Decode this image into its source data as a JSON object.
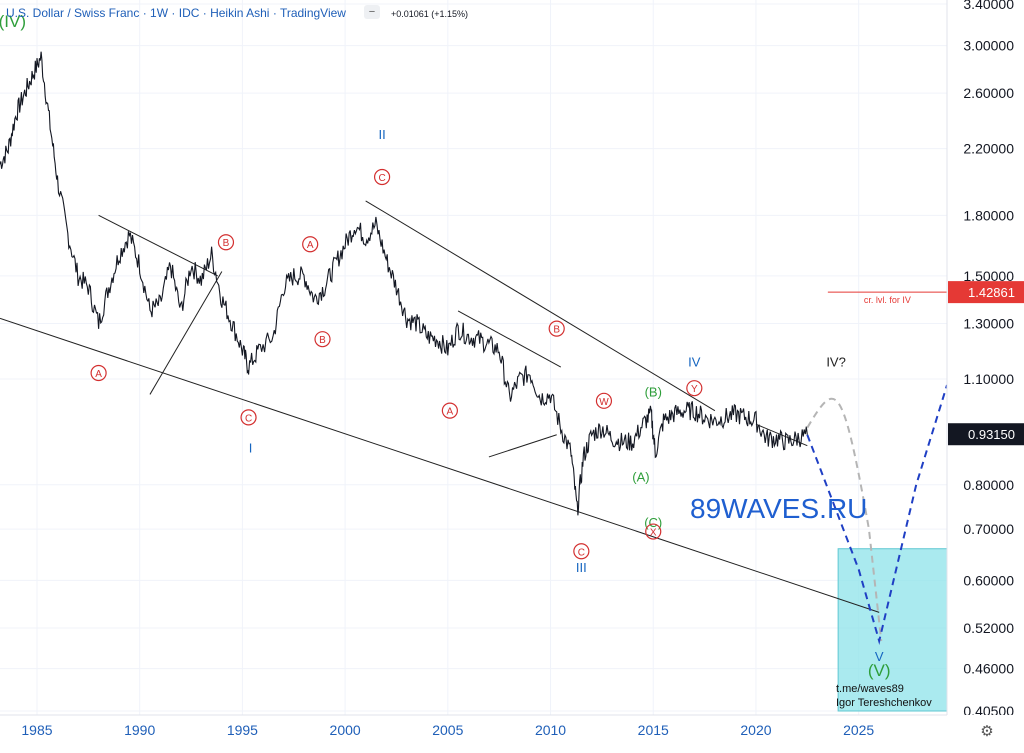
{
  "header": {
    "symbol": "U.S. Dollar / Swiss Franc",
    "interval": "1W",
    "exchange": "IDC",
    "chart_style": "Heikin Ashi",
    "platform": "TradingView",
    "change": "+0.01061 (+1.15%)"
  },
  "colors": {
    "price": "#131722",
    "red": "#d32f2f",
    "blue": "#1565c0",
    "green": "#2e9e3a",
    "trend": "#222222",
    "box": "#8ee3ea",
    "projection_gray": "#b5b5b5",
    "projection_blue": "#1f3fc4",
    "level": "#e53935"
  },
  "chart_data": {
    "type": "line",
    "x_unit": "year",
    "y_scale": "log",
    "xlim": [
      1983.2,
      2029.3
    ],
    "ylim": [
      0.405,
      3.4
    ],
    "x_ticks": [
      "1985",
      "1990",
      "1995",
      "2000",
      "2005",
      "2010",
      "2015",
      "2020",
      "2025"
    ],
    "y_ticks": [
      "3.40000",
      "3.00000",
      "2.60000",
      "2.20000",
      "1.80000",
      "1.50000",
      "1.30000",
      "1.10000",
      "0.80000",
      "0.70000",
      "0.60000",
      "0.52000",
      "0.46000",
      "0.40500"
    ],
    "price_series": {
      "x": [
        1983.2,
        1983.6,
        1984.0,
        1984.4,
        1984.8,
        1985.2,
        1985.6,
        1986.0,
        1986.5,
        1987.0,
        1987.5,
        1988.0,
        1988.5,
        1989.0,
        1989.5,
        1990.0,
        1990.5,
        1991.0,
        1991.5,
        1992.0,
        1992.5,
        1993.0,
        1993.5,
        1994.0,
        1994.5,
        1995.0,
        1995.3,
        1995.8,
        1996.5,
        1997.0,
        1997.5,
        1998.0,
        1998.5,
        1999.0,
        1999.5,
        2000.0,
        2000.5,
        2001.0,
        2001.5,
        2002.0,
        2002.5,
        2003.0,
        2003.5,
        2004.0,
        2004.5,
        2005.0,
        2005.5,
        2006.0,
        2006.5,
        2007.0,
        2007.5,
        2008.0,
        2008.5,
        2009.0,
        2009.5,
        2010.0,
        2010.5,
        2011.0,
        2011.3,
        2011.6,
        2012.0,
        2012.5,
        2013.0,
        2013.5,
        2014.0,
        2014.5,
        2014.9,
        2015.1,
        2015.5,
        2016.0,
        2016.5,
        2017.0,
        2017.5,
        2018.0,
        2018.5,
        2019.0,
        2019.5,
        2020.0,
        2020.5,
        2021.0,
        2021.5,
        2022.0,
        2022.5
      ],
      "y": [
        2.1,
        2.2,
        2.45,
        2.6,
        2.75,
        2.9,
        2.4,
        2.0,
        1.7,
        1.5,
        1.45,
        1.3,
        1.45,
        1.6,
        1.7,
        1.55,
        1.35,
        1.38,
        1.55,
        1.35,
        1.55,
        1.48,
        1.6,
        1.4,
        1.3,
        1.2,
        1.14,
        1.2,
        1.25,
        1.45,
        1.5,
        1.5,
        1.4,
        1.45,
        1.55,
        1.65,
        1.75,
        1.68,
        1.75,
        1.58,
        1.45,
        1.32,
        1.3,
        1.25,
        1.24,
        1.2,
        1.28,
        1.25,
        1.24,
        1.22,
        1.2,
        1.04,
        1.1,
        1.12,
        1.04,
        1.05,
        0.95,
        0.88,
        0.74,
        0.87,
        0.93,
        0.95,
        0.92,
        0.91,
        0.91,
        0.96,
        0.99,
        0.88,
        0.97,
        0.99,
        1.0,
        1.0,
        0.98,
        0.97,
        0.98,
        0.99,
        0.98,
        0.97,
        0.92,
        0.92,
        0.91,
        0.92,
        0.93
      ]
    },
    "projection_blue": {
      "x": [
        2022.5,
        2025.0,
        2026.0,
        2027.8,
        2029.3
      ],
      "y": [
        0.93,
        0.62,
        0.5,
        0.8,
        1.08
      ]
    },
    "projection_gray": {
      "x": [
        2022.5,
        2023.9,
        2024.2,
        2025.5,
        2026.1
      ],
      "y": [
        0.95,
        1.1,
        1.1,
        0.7,
        0.5
      ]
    },
    "trend_lines": [
      {
        "x": [
          1983.2,
          2026.0
        ],
        "y": [
          1.32,
          0.545
        ]
      },
      {
        "x": [
          2001.0,
          2018.0
        ],
        "y": [
          1.88,
          1.0
        ]
      },
      {
        "x": [
          1988.0,
          1993.8
        ],
        "y": [
          1.8,
          1.5
        ]
      },
      {
        "x": [
          1990.5,
          1994.0
        ],
        "y": [
          1.05,
          1.52
        ]
      },
      {
        "x": [
          2005.5,
          2010.5
        ],
        "y": [
          1.35,
          1.14
        ]
      },
      {
        "x": [
          2007.0,
          2010.3
        ],
        "y": [
          0.87,
          0.93
        ]
      },
      {
        "x": [
          2020.0,
          2022.5
        ],
        "y": [
          0.96,
          0.9
        ]
      }
    ],
    "price_last": "0.93150",
    "level_label": "1.42861",
    "level_value": 1.42861,
    "level_caption": "cr. lvl. for IV",
    "level_x_start": 2023.5,
    "target_box": {
      "x": [
        2024.0,
        2029.3
      ],
      "y": [
        0.405,
        0.66
      ]
    },
    "wave_labels": [
      {
        "text": "(IV)",
        "x": 1983.8,
        "y": 3.22,
        "color": "green",
        "circle": false
      },
      {
        "text": "A",
        "x": 1988.0,
        "y": 1.12,
        "color": "red",
        "circle": true
      },
      {
        "text": "B",
        "x": 1994.2,
        "y": 1.66,
        "color": "red",
        "circle": true
      },
      {
        "text": "C",
        "x": 1995.3,
        "y": 0.98,
        "color": "red",
        "circle": true
      },
      {
        "text": "I",
        "x": 1995.4,
        "y": 0.895,
        "color": "blue",
        "circle": false
      },
      {
        "text": "A",
        "x": 1998.3,
        "y": 1.65,
        "color": "red",
        "circle": true
      },
      {
        "text": "B",
        "x": 1998.9,
        "y": 1.24,
        "color": "red",
        "circle": true
      },
      {
        "text": "II",
        "x": 2001.8,
        "y": 2.3,
        "color": "blue",
        "circle": false
      },
      {
        "text": "C",
        "x": 2001.8,
        "y": 2.02,
        "color": "red",
        "circle": true
      },
      {
        "text": "A",
        "x": 2005.1,
        "y": 1.0,
        "color": "red",
        "circle": true
      },
      {
        "text": "B",
        "x": 2010.3,
        "y": 1.28,
        "color": "red",
        "circle": true
      },
      {
        "text": "W",
        "x": 2012.6,
        "y": 1.03,
        "color": "red",
        "circle": true
      },
      {
        "text": "C",
        "x": 2011.5,
        "y": 0.655,
        "color": "red",
        "circle": true
      },
      {
        "text": "III",
        "x": 2011.5,
        "y": 0.625,
        "color": "blue",
        "circle": false
      },
      {
        "text": "(B)",
        "x": 2015.0,
        "y": 1.06,
        "color": "green",
        "circle": false
      },
      {
        "text": "(A)",
        "x": 2014.4,
        "y": 0.82,
        "color": "green",
        "circle": false
      },
      {
        "text": "(C)",
        "x": 2015.0,
        "y": 0.715,
        "color": "green",
        "circle": false
      },
      {
        "text": "X",
        "x": 2015.0,
        "y": 0.695,
        "color": "red",
        "circle": true
      },
      {
        "text": "IV",
        "x": 2017.0,
        "y": 1.16,
        "color": "blue",
        "circle": false
      },
      {
        "text": "Y",
        "x": 2017.0,
        "y": 1.07,
        "color": "red",
        "circle": true
      },
      {
        "text": "IV?",
        "x": 2023.9,
        "y": 1.16,
        "color": "dark",
        "circle": false
      },
      {
        "text": "V",
        "x": 2026.0,
        "y": 0.478,
        "color": "blue",
        "circle": false
      },
      {
        "text": "(V)",
        "x": 2026.0,
        "y": 0.457,
        "color": "green",
        "circle": false
      }
    ],
    "watermark": "89WAVES.RU",
    "credits": [
      "t.me/waves89",
      "Igor Tereshchenkov"
    ]
  }
}
